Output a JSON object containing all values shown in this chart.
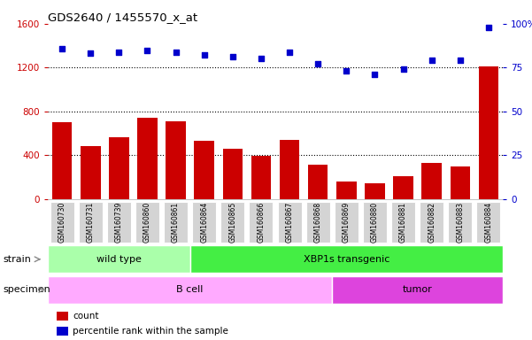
{
  "title": "GDS2640 / 1455570_x_at",
  "samples": [
    "GSM160730",
    "GSM160731",
    "GSM160739",
    "GSM160860",
    "GSM160861",
    "GSM160864",
    "GSM160865",
    "GSM160866",
    "GSM160867",
    "GSM160868",
    "GSM160869",
    "GSM160880",
    "GSM160881",
    "GSM160882",
    "GSM160883",
    "GSM160884"
  ],
  "counts": [
    700,
    480,
    560,
    740,
    710,
    530,
    460,
    390,
    540,
    310,
    155,
    140,
    210,
    330,
    300,
    1210
  ],
  "percentiles": [
    86,
    83,
    84,
    85,
    84,
    82,
    81,
    80,
    84,
    77,
    73,
    71,
    74,
    79,
    79,
    98
  ],
  "bar_color": "#cc0000",
  "dot_color": "#0000cc",
  "ylim_left": [
    0,
    1600
  ],
  "ylim_right": [
    0,
    100
  ],
  "yticks_left": [
    0,
    400,
    800,
    1200,
    1600
  ],
  "yticks_right": [
    0,
    25,
    50,
    75,
    100
  ],
  "ytick_labels_right": [
    "0",
    "25",
    "50",
    "75",
    "100%"
  ],
  "grid_values": [
    400,
    800,
    1200
  ],
  "wild_type_count": 5,
  "bcell_count": 10,
  "strain_color_wt": "#aaffaa",
  "strain_color_xbp": "#44ee44",
  "specimen_color_bcell": "#ffaaff",
  "specimen_color_tumor": "#dd44dd",
  "legend_count_color": "#cc0000",
  "legend_dot_color": "#0000cc"
}
